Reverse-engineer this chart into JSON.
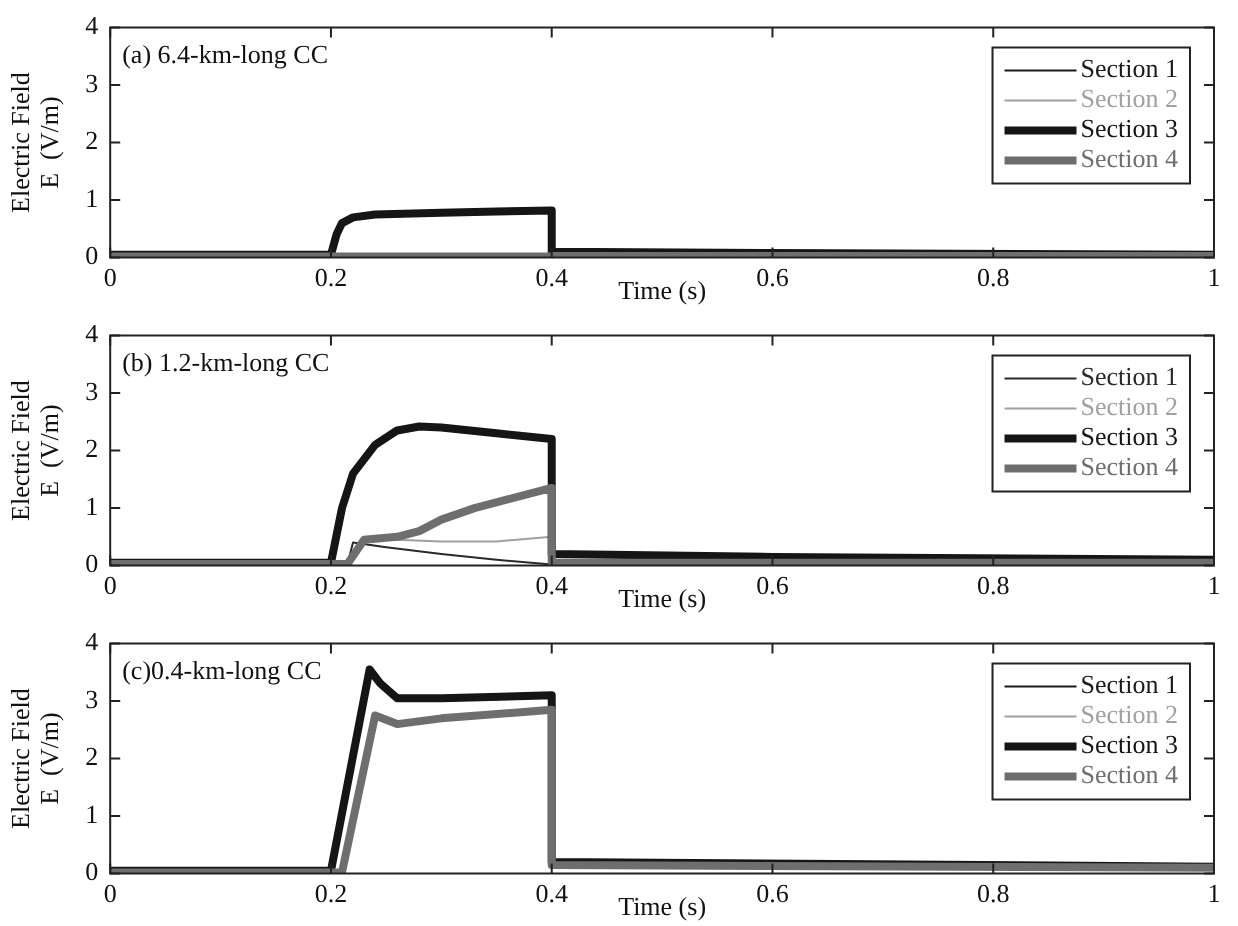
{
  "chart_data": [
    {
      "type": "line",
      "annotations": [
        "(a) 6.4-km-long CC"
      ],
      "xlabel": "Time (s)",
      "ylabel": "Electric Field\nE  (V/m)",
      "xlim": [
        0,
        1
      ],
      "xticks": [
        0,
        0.2,
        0.4,
        0.6,
        0.8,
        1
      ],
      "ylim": [
        0,
        4
      ],
      "yticks": [
        0,
        1,
        2,
        3,
        4
      ],
      "grid": false,
      "legend": "top right",
      "marker": "none",
      "line_style": "solid",
      "series": [
        {
          "name": "Section 1",
          "color": "#1a1a1a"
        },
        {
          "name": "Section 2",
          "color": "#a0a0a0"
        },
        {
          "name": "Section 3",
          "color": "#151515",
          "x": [
            0,
            0.2,
            0.205,
            0.21,
            0.22,
            0.24,
            0.3,
            0.35,
            0.4,
            0.4,
            0.6,
            1
          ],
          "values": [
            0.05,
            0.05,
            0.4,
            0.6,
            0.7,
            0.75,
            0.78,
            0.8,
            0.82,
            0.1,
            0.08,
            0.05
          ]
        },
        {
          "name": "Section 4",
          "color": "#6e6e6e",
          "x": [
            0,
            0.2,
            0.4,
            0.4,
            1
          ],
          "values": [
            0.02,
            0.02,
            0.02,
            0.03,
            0.03
          ]
        }
      ]
    },
    {
      "type": "line",
      "annotations": [
        "(b) 1.2-km-long CC"
      ],
      "xlabel": "Time (s)",
      "ylabel": "Electric Field\nE  (V/m)",
      "xlim": [
        0,
        1
      ],
      "xticks": [
        0,
        0.2,
        0.4,
        0.6,
        0.8,
        1
      ],
      "ylim": [
        0,
        4
      ],
      "yticks": [
        0,
        1,
        2,
        3,
        4
      ],
      "grid": false,
      "legend": "top right",
      "marker": "none",
      "line_style": "solid",
      "series": [
        {
          "name": "Section 1",
          "color": "#2a2a2a",
          "x": [
            0,
            0.215,
            0.22,
            0.25,
            0.3,
            0.35,
            0.4,
            0.4,
            1
          ],
          "values": [
            0.03,
            0.03,
            0.4,
            0.32,
            0.2,
            0.1,
            0.02,
            0.05,
            0.05
          ]
        },
        {
          "name": "Section 2",
          "color": "#a0a0a0",
          "x": [
            0,
            0.215,
            0.23,
            0.26,
            0.3,
            0.35,
            0.4,
            0.4,
            1
          ],
          "values": [
            0.03,
            0.03,
            0.45,
            0.45,
            0.42,
            0.42,
            0.5,
            0.05,
            0.05
          ]
        },
        {
          "name": "Section 3",
          "color": "#151515",
          "x": [
            0,
            0.2,
            0.21,
            0.22,
            0.24,
            0.26,
            0.28,
            0.3,
            0.35,
            0.4,
            0.4,
            0.6,
            1
          ],
          "values": [
            0.05,
            0.05,
            1.0,
            1.6,
            2.1,
            2.35,
            2.42,
            2.4,
            2.3,
            2.2,
            0.2,
            0.15,
            0.1
          ]
        },
        {
          "name": "Section 4",
          "color": "#6e6e6e",
          "x": [
            0,
            0.215,
            0.23,
            0.26,
            0.28,
            0.3,
            0.33,
            0.36,
            0.4,
            0.4,
            1
          ],
          "values": [
            0.03,
            0.03,
            0.45,
            0.5,
            0.6,
            0.8,
            1.0,
            1.15,
            1.35,
            0.05,
            0.05
          ]
        }
      ]
    },
    {
      "type": "line",
      "annotations": [
        "(c)0.4-km-long CC"
      ],
      "xlabel": "Time (s)",
      "ylabel": "Electric Field\nE  (V/m)",
      "xlim": [
        0,
        1
      ],
      "xticks": [
        0,
        0.2,
        0.4,
        0.6,
        0.8,
        1
      ],
      "ylim": [
        0,
        4
      ],
      "yticks": [
        0,
        1,
        2,
        3,
        4
      ],
      "grid": false,
      "legend": "top right",
      "marker": "none",
      "line_style": "solid",
      "series": [
        {
          "name": "Section 1",
          "color": "#1a1a1a"
        },
        {
          "name": "Section 2",
          "color": "#a0a0a0"
        },
        {
          "name": "Section 3",
          "color": "#151515",
          "x": [
            0,
            0.2,
            0.235,
            0.245,
            0.26,
            0.3,
            0.4,
            0.4,
            1
          ],
          "values": [
            0.05,
            0.05,
            3.55,
            3.3,
            3.05,
            3.05,
            3.1,
            0.2,
            0.12
          ]
        },
        {
          "name": "Section 4",
          "color": "#6e6e6e",
          "x": [
            0,
            0.21,
            0.24,
            0.26,
            0.3,
            0.4,
            0.4,
            1
          ],
          "values": [
            0.02,
            0.02,
            2.75,
            2.6,
            2.7,
            2.85,
            0.15,
            0.1
          ]
        }
      ]
    }
  ]
}
